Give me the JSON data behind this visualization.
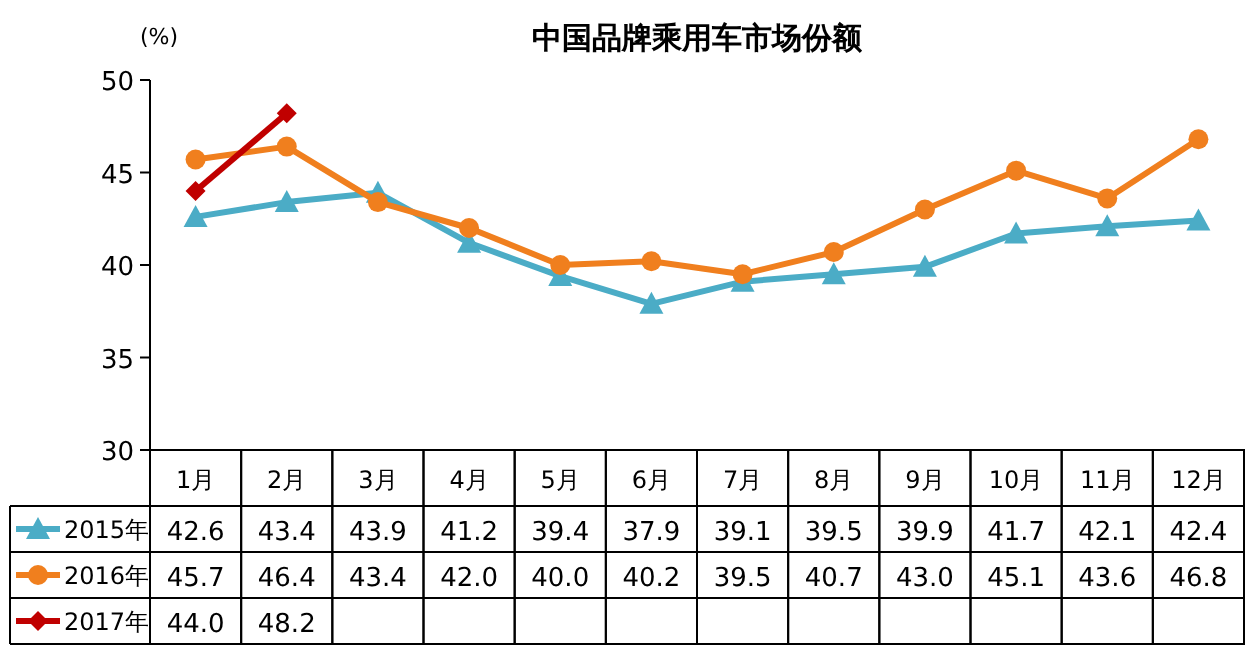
{
  "chart_data": {
    "type": "line",
    "title": "中国品牌乘用车市场份额",
    "ylabel": "(%)",
    "categories": [
      "1月",
      "2月",
      "3月",
      "4月",
      "5月",
      "6月",
      "7月",
      "8月",
      "9月",
      "10月",
      "11月",
      "12月"
    ],
    "ylim": [
      30,
      50
    ],
    "yticks": [
      30,
      35,
      40,
      45,
      50
    ],
    "grid": false,
    "legend": "bottom",
    "series": [
      {
        "name": "2015年",
        "color": "#4bacc6",
        "marker": "triangle",
        "values": [
          42.6,
          43.4,
          43.9,
          41.2,
          39.4,
          37.9,
          39.1,
          39.5,
          39.9,
          41.7,
          42.1,
          42.4
        ],
        "value_labels": [
          "42.6",
          "43.4",
          "43.9",
          "41.2",
          "39.4",
          "37.9",
          "39.1",
          "39.5",
          "39.9",
          "41.7",
          "42.1",
          "42.4"
        ]
      },
      {
        "name": "2016年",
        "color": "#f07f1e",
        "marker": "circle",
        "values": [
          45.7,
          46.4,
          43.4,
          42.0,
          40.0,
          40.2,
          39.5,
          40.7,
          43.0,
          45.1,
          43.6,
          46.8
        ],
        "value_labels": [
          "45.7",
          "46.4",
          "43.4",
          "42.0",
          "40.0",
          "40.2",
          "39.5",
          "40.7",
          "43.0",
          "45.1",
          "43.6",
          "46.8"
        ]
      },
      {
        "name": "2017年",
        "color": "#c00000",
        "marker": "diamond",
        "values": [
          44.0,
          48.2,
          null,
          null,
          null,
          null,
          null,
          null,
          null,
          null,
          null,
          null
        ],
        "value_labels": [
          "44.0",
          "48.2",
          null,
          null,
          null,
          null,
          null,
          null,
          null,
          null,
          null,
          null
        ]
      }
    ]
  }
}
